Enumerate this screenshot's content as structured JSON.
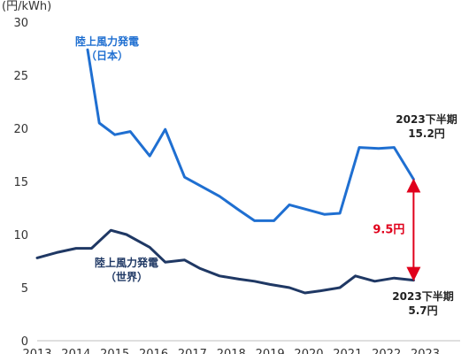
{
  "chart_data": {
    "type": "line",
    "ylabel": "(円/kWh)",
    "ylim": [
      0,
      30
    ],
    "yticks": [
      0,
      5,
      10,
      15,
      20,
      25,
      30
    ],
    "xticks": [
      "2013",
      "2014",
      "2015",
      "2016",
      "2017",
      "2018",
      "2019",
      "2020",
      "2021",
      "2022",
      "2023"
    ],
    "xlim": [
      2013,
      2023.9
    ],
    "grid": false,
    "series": [
      {
        "name_lines": [
          "陸上風力発電",
          "（日本）"
        ],
        "color": "#1f6fd1",
        "points": [
          [
            2014.3,
            27.4
          ],
          [
            2014.6,
            20.5
          ],
          [
            2015.0,
            19.4
          ],
          [
            2015.4,
            19.7
          ],
          [
            2015.9,
            17.4
          ],
          [
            2016.3,
            19.9
          ],
          [
            2016.8,
            15.4
          ],
          [
            2017.2,
            14.6
          ],
          [
            2017.7,
            13.6
          ],
          [
            2018.2,
            12.3
          ],
          [
            2018.6,
            11.3
          ],
          [
            2019.1,
            11.3
          ],
          [
            2019.5,
            12.8
          ],
          [
            2019.9,
            12.4
          ],
          [
            2020.4,
            11.9
          ],
          [
            2020.8,
            12.0
          ],
          [
            2021.3,
            18.2
          ],
          [
            2021.8,
            18.1
          ],
          [
            2022.2,
            18.2
          ],
          [
            2022.7,
            15.2
          ]
        ],
        "end_label": [
          "2023下半期",
          "15.2円"
        ]
      },
      {
        "name_lines": [
          "陸上風力発電",
          "（世界）"
        ],
        "color": "#1f3864",
        "points": [
          [
            2013.0,
            7.8
          ],
          [
            2013.5,
            8.3
          ],
          [
            2014.0,
            8.7
          ],
          [
            2014.4,
            8.7
          ],
          [
            2014.9,
            10.4
          ],
          [
            2015.3,
            10.0
          ],
          [
            2015.9,
            8.8
          ],
          [
            2016.3,
            7.4
          ],
          [
            2016.8,
            7.6
          ],
          [
            2017.2,
            6.8
          ],
          [
            2017.7,
            6.1
          ],
          [
            2018.2,
            5.8
          ],
          [
            2018.6,
            5.6
          ],
          [
            2019.0,
            5.3
          ],
          [
            2019.5,
            5.0
          ],
          [
            2019.9,
            4.5
          ],
          [
            2020.3,
            4.7
          ],
          [
            2020.8,
            5.0
          ],
          [
            2021.2,
            6.1
          ],
          [
            2021.7,
            5.6
          ],
          [
            2022.2,
            5.9
          ],
          [
            2022.7,
            5.7
          ]
        ],
        "end_label": [
          "2023下半期",
          "5.7円"
        ]
      }
    ],
    "difference": {
      "label": "9.5円",
      "color": "#e0001b"
    }
  }
}
